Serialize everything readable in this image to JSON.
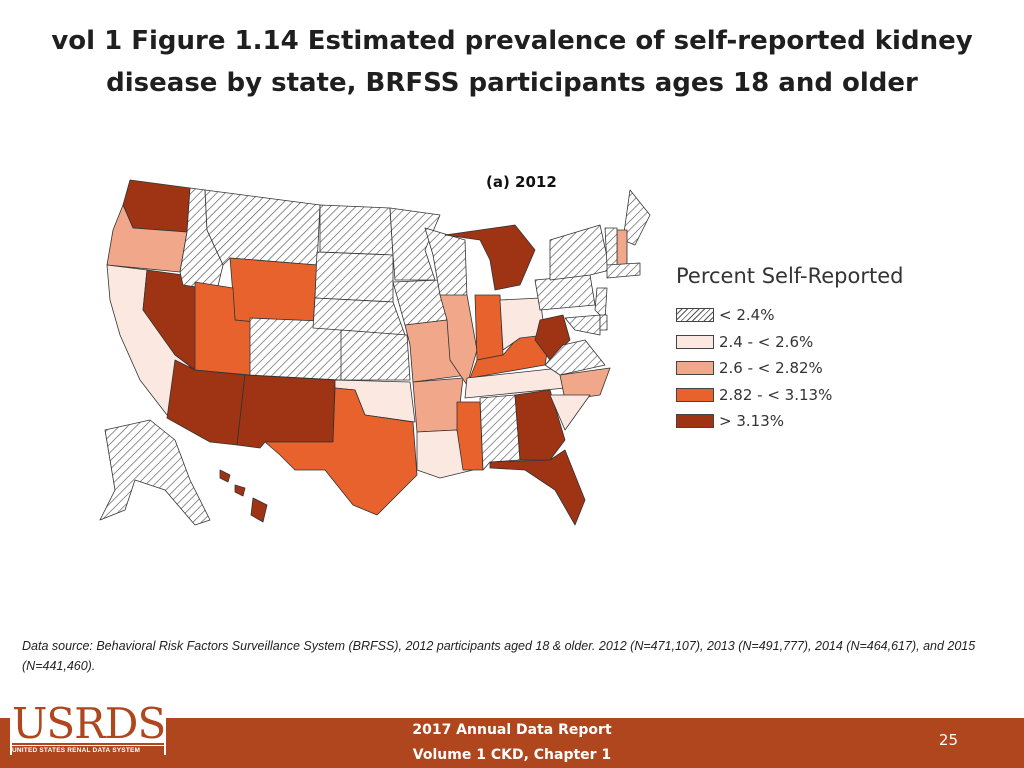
{
  "header": {
    "title_line1": "vol 1 Figure 1.14 Estimated prevalence of self-reported kidney",
    "title_line2": "disease by state, BRFSS participants ages 18 and older",
    "panel_label": "(a) 2012"
  },
  "legend": {
    "title": "Percent Self-Reported",
    "items": [
      {
        "label": "< 2.4%",
        "fill": "hatch"
      },
      {
        "label": "2.4 - < 2.6%",
        "fill": "#fbe9e1"
      },
      {
        "label": "2.6 - < 2.82%",
        "fill": "#f0a78a"
      },
      {
        "label": "2.82 - < 3.13%",
        "fill": "#e8622d"
      },
      {
        "label": "> 3.13%",
        "fill": "#9e3414"
      }
    ]
  },
  "map": {
    "category_colors": [
      "hatch",
      "#fbe9e1",
      "#f0a78a",
      "#e8622d",
      "#9e3414"
    ],
    "state_category": {
      "WA": 4,
      "OR": 2,
      "CA": 1,
      "NV": 4,
      "ID": 0,
      "MT": 0,
      "WY": 3,
      "UT": 3,
      "AZ": 4,
      "CO": 0,
      "NM": 4,
      "ND": 0,
      "SD": 0,
      "NE": 0,
      "KS": 0,
      "OK": 1,
      "TX": 3,
      "MN": 0,
      "IA": 0,
      "MO": 2,
      "AR": 2,
      "LA": 1,
      "WI": 0,
      "IL": 2,
      "MS": 3,
      "MI": 4,
      "IN": 3,
      "KY": 3,
      "TN": 1,
      "AL": 0,
      "GA": 4,
      "FL": 4,
      "OH": 1,
      "WV": 4,
      "VA": 0,
      "NC": 2,
      "SC": 1,
      "PA": 0,
      "NY": 0,
      "ME": 0,
      "NH": 2,
      "VT": 0,
      "MA": 0,
      "NJ": 0,
      "MD": 0,
      "DE": 0,
      "AK": 0,
      "HI": 4
    }
  },
  "source_text": "Data source: Behavioral Risk Factors Surveillance System (BRFSS), 2012 participants aged 18 & older. 2012 (N=471,107), 2013 (N=491,777), 2014 (N=464,617), and 2015 (N=441,460).",
  "footer": {
    "logo_text": "USRDS",
    "logo_subtext": "UNITED STATES RENAL DATA SYSTEM",
    "report_line1": "2017 Annual Data Report",
    "report_line2": "Volume 1 CKD, Chapter 1",
    "page_number": "25"
  }
}
